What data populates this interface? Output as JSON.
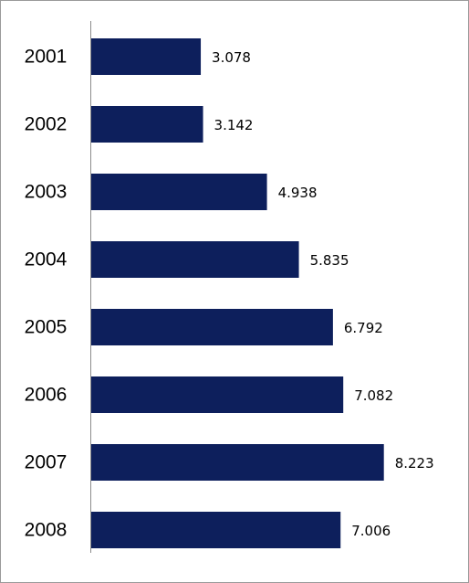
{
  "chart_data": {
    "type": "bar",
    "orientation": "horizontal",
    "categories": [
      "2001",
      "2002",
      "2003",
      "2004",
      "2005",
      "2006",
      "2007",
      "2008"
    ],
    "values": [
      3.078,
      3.142,
      4.938,
      5.835,
      6.792,
      7.082,
      8.223,
      7.006
    ],
    "value_labels": [
      "3.078",
      "3.142",
      "4.938",
      "5.835",
      "6.792",
      "7.082",
      "8.223",
      "7.006"
    ],
    "xlim": [
      0,
      10
    ],
    "grid": false,
    "title": "",
    "xlabel": "",
    "ylabel": "",
    "colors": {
      "bar": "#0d1f5c",
      "axis": "#8c8c8c"
    }
  }
}
